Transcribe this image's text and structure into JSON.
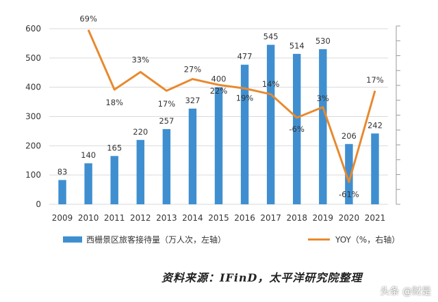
{
  "chart_data": {
    "type": "bar+line",
    "categories": [
      "2009",
      "2010",
      "2011",
      "2012",
      "2013",
      "2014",
      "2015",
      "2016",
      "2017",
      "2018",
      "2019",
      "2020",
      "2021"
    ],
    "series": [
      {
        "name": "西栅景区旅客接待量（万人次，左轴）",
        "type": "bar",
        "axis": "left",
        "values": [
          83,
          140,
          165,
          220,
          257,
          327,
          400,
          477,
          545,
          514,
          530,
          206,
          242
        ],
        "labels": [
          "83",
          "140",
          "165",
          "220",
          "257",
          "327",
          "400",
          "477",
          "545",
          "514",
          "530",
          "206",
          "242"
        ]
      },
      {
        "name": "YOY（%，右轴）",
        "type": "line",
        "axis": "right",
        "values": [
          null,
          69,
          18,
          33,
          17,
          27,
          22,
          19,
          14,
          -6,
          3,
          -61,
          17
        ],
        "labels": [
          "",
          "69%",
          "18%",
          "33%",
          "17%",
          "27%",
          "22%",
          "19%",
          "14%",
          "-6%",
          "3%",
          "-61%",
          "17%"
        ]
      }
    ],
    "ylim": [
      0,
      600
    ],
    "y_ticks": [
      "0",
      "100",
      "200",
      "300",
      "400",
      "500",
      "600"
    ],
    "y2lim": [
      -80,
      70
    ],
    "colors": {
      "bar": "#3f8fd0",
      "line": "#e8892e",
      "grid": "#d9d9d9"
    },
    "grid": true,
    "legend_position": "bottom"
  },
  "legend": {
    "bar_label": "西栅景区旅客接待量（万人次，左轴）",
    "line_label": "YOY（%，右轴）"
  },
  "source": "资料来源：IFinD，太平洋研究院整理",
  "watermark": "头条 @财是"
}
